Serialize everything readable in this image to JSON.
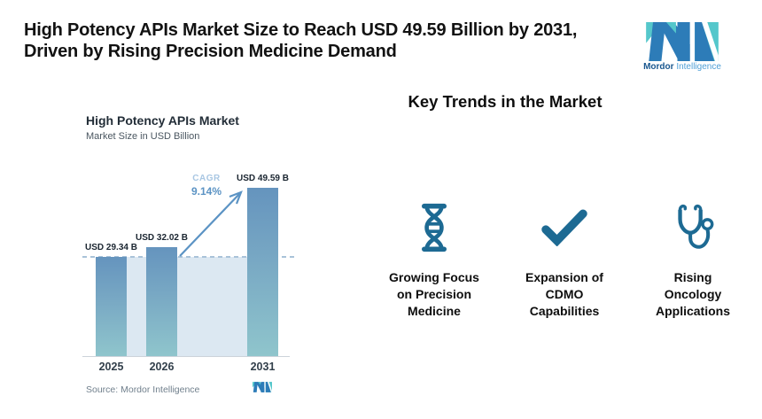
{
  "header": {
    "title_line1": "High Potency APIs Market Size to Reach USD 49.59 Billion by 2031,",
    "title_line2": "Driven by Rising Precision Medicine Demand",
    "logo": {
      "brand_bold": "Mordor",
      "brand_light": "Intelligence"
    }
  },
  "chart": {
    "title": "High Potency APIs Market",
    "subtitle": "Market Size in USD Billion",
    "cagr_label": "CAGR",
    "cagr_value": "9.14%",
    "source": "Source: Mordor Intelligence"
  },
  "chart_data": {
    "type": "bar",
    "categories": [
      "2025",
      "2026",
      "2031"
    ],
    "values": [
      29.34,
      32.02,
      49.59
    ],
    "bar_labels": [
      "USD 29.34 B",
      "USD 32.02 B",
      "USD 49.59 B"
    ],
    "title": "High Potency APIs Market",
    "subtitle": "Market Size in USD Billion",
    "xlabel": "",
    "ylabel": "Market Size in USD Billion",
    "ylim": [
      0,
      52
    ],
    "grid": false,
    "annotations": {
      "cagr_label": "CAGR",
      "cagr_value": "9.14%",
      "arrow": "from top of 2026 bar to top of 2031 bar",
      "dashed_reference_value": 29.34,
      "shaded_area_below_reference": true
    },
    "colors": {
      "bar_top": "#6594be",
      "bar_bottom": "#8fc5cc",
      "area_fill": "#dce8f2",
      "dashed_line": "#a9c3d9",
      "arrow": "#5b93c4",
      "cagr_label": "#a9c7e3",
      "cagr_value": "#5b93c4"
    }
  },
  "trends": {
    "heading": "Key Trends in the Market",
    "icon_color": "#1d6a93",
    "items": [
      {
        "icon": "dna-icon",
        "label": "Growing Focus\non Precision\nMedicine"
      },
      {
        "icon": "check-icon",
        "label": "Expansion of\nCDMO\nCapabilities"
      },
      {
        "icon": "stethoscope-icon",
        "label": "Rising\nOncology\nApplications"
      }
    ]
  }
}
